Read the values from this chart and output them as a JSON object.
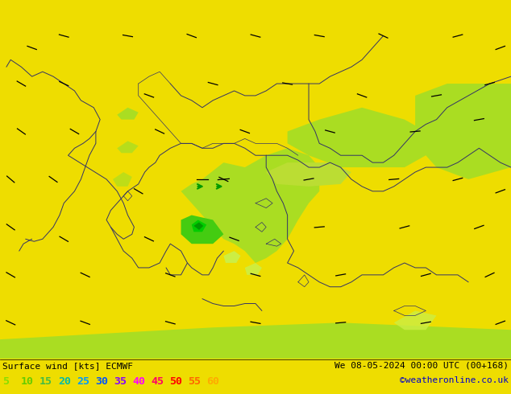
{
  "title_left": "Surface wind [kts] ECMWF",
  "title_right": "We 08-05-2024 00:00 UTC (00+168)",
  "credit": "©weatheronline.co.uk",
  "legend_values": [
    "5",
    "10",
    "15",
    "20",
    "25",
    "30",
    "35",
    "40",
    "45",
    "50",
    "55",
    "60"
  ],
  "legend_colors": [
    "#88dd00",
    "#88dd00",
    "#44cc44",
    "#00ccaa",
    "#00aaff",
    "#0055ff",
    "#aa00ff",
    "#ff00ff",
    "#ff0066",
    "#ff0000",
    "#ff6600",
    "#ffaa00"
  ],
  "bg_color": "#eedd00",
  "map_bg": "#eedd00",
  "figsize": [
    6.34,
    4.9
  ],
  "dpi": 100,
  "bottom_bar_color": "#ccee00",
  "coast_color": "#333366",
  "wind_green_light": "#ccee44",
  "wind_green_med": "#aadd22",
  "wind_green_dark": "#00cc00",
  "wind_green_vdark": "#00aa00"
}
